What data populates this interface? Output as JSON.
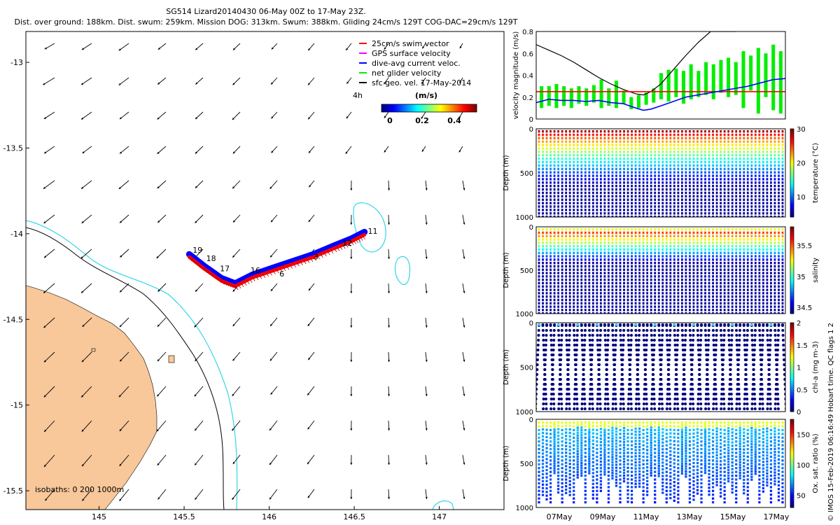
{
  "title": "SG514 Lizard20140430 06-May 00Z to 17-May 23Z.",
  "subtitle": "Dist. over ground: 188km. Dist. swum: 259km. Mission DOG: 313km. Swum: 388km. Gliding 24cm/s 129T COG-DAC=29cm/s 129T",
  "credit": "© IMOS 15-Feb-2019 06:16:49 Hobart time. QC flags 1  2",
  "colors": {
    "land": "#f8c79a",
    "isobath_200": "#000000",
    "isobath_1000": "#33d6e8",
    "track_red": "#ff0000",
    "track_blue": "#0000ff",
    "gps_magenta": "#ff00ff",
    "net_green": "#00ee00"
  },
  "map": {
    "xticks": [
      "145",
      "145.5",
      "146",
      "146.5",
      "147"
    ],
    "yticks": [
      "-13",
      "-13.5",
      "-14",
      "-14.5",
      "-15",
      "-15.5"
    ],
    "isobath_label": "isobaths: 0   200  1000m",
    "legend": [
      {
        "label": "25cm/s swim vector",
        "color": "#ff0000"
      },
      {
        "label": "GPS surface velocity",
        "color": "#ff00ff"
      },
      {
        "label": "dive-avg current veloc.",
        "color": "#0000ff"
      },
      {
        "label": "net glider velocity",
        "color": "#00ee00"
      },
      {
        "label": "sfc geo. vel. 17-May-2014",
        "color": "#000000"
      }
    ],
    "colorbar": {
      "label": "(m/s)",
      "ticks": [
        "0",
        "0.2",
        "0.4"
      ],
      "extra_label": "4h"
    },
    "day_labels": [
      {
        "text": "19",
        "lon": 145.55,
        "lat": -14.11
      },
      {
        "text": "18",
        "lon": 145.63,
        "lat": -14.16
      },
      {
        "text": "17",
        "lon": 145.71,
        "lat": -14.22
      },
      {
        "text": "16",
        "lon": 145.89,
        "lat": -14.23
      },
      {
        "text": "6",
        "lon": 146.06,
        "lat": -14.25
      },
      {
        "text": "3",
        "lon": 146.26,
        "lat": -14.15
      },
      {
        "text": "12",
        "lon": 146.43,
        "lat": -14.07
      },
      {
        "text": "11",
        "lon": 146.58,
        "lat": -14.0
      }
    ]
  },
  "chart_data": [
    {
      "type": "line",
      "ylabel": "velocity magnitude (m/s)",
      "ylim": [
        0,
        0.8
      ],
      "yticks": [
        "0",
        "0.2",
        "0.4",
        "0.6",
        "0.8"
      ],
      "series": [
        {
          "name": "black",
          "color": "#000000",
          "x": [
            0,
            0.05,
            0.1,
            0.15,
            0.2,
            0.25,
            0.3,
            0.35,
            0.4,
            0.43,
            0.46,
            0.5,
            0.55,
            0.6,
            0.65,
            0.7,
            0.75,
            0.8
          ],
          "values": [
            0.68,
            0.63,
            0.58,
            0.52,
            0.45,
            0.38,
            0.32,
            0.27,
            0.23,
            0.22,
            0.25,
            0.32,
            0.45,
            0.58,
            0.7,
            0.8,
            0.8,
            0.8
          ]
        },
        {
          "name": "red",
          "color": "#ff0000",
          "x": [
            0,
            1
          ],
          "values": [
            0.25,
            0.25
          ]
        },
        {
          "name": "blue",
          "color": "#0000ff",
          "x": [
            0,
            0.05,
            0.1,
            0.15,
            0.2,
            0.25,
            0.3,
            0.35,
            0.4,
            0.43,
            0.46,
            0.5,
            0.55,
            0.6,
            0.65,
            0.7,
            0.75,
            0.8,
            0.85,
            0.9,
            0.95,
            1
          ],
          "values": [
            0.15,
            0.18,
            0.17,
            0.17,
            0.16,
            0.17,
            0.15,
            0.14,
            0.1,
            0.08,
            0.09,
            0.12,
            0.16,
            0.2,
            0.22,
            0.24,
            0.26,
            0.28,
            0.3,
            0.33,
            0.36,
            0.37
          ]
        }
      ],
      "green_bars": [
        [
          0.02,
          0.1,
          0.3
        ],
        [
          0.05,
          0.12,
          0.3
        ],
        [
          0.08,
          0.1,
          0.32
        ],
        [
          0.11,
          0.12,
          0.3
        ],
        [
          0.14,
          0.1,
          0.28
        ],
        [
          0.17,
          0.14,
          0.3
        ],
        [
          0.2,
          0.12,
          0.28
        ],
        [
          0.23,
          0.15,
          0.31
        ],
        [
          0.26,
          0.1,
          0.36
        ],
        [
          0.29,
          0.12,
          0.28
        ],
        [
          0.32,
          0.1,
          0.35
        ],
        [
          0.35,
          0.14,
          0.26
        ],
        [
          0.38,
          0.09,
          0.2
        ],
        [
          0.41,
          0.1,
          0.22
        ],
        [
          0.44,
          0.13,
          0.24
        ],
        [
          0.47,
          0.15,
          0.28
        ],
        [
          0.5,
          0.18,
          0.42
        ],
        [
          0.53,
          0.16,
          0.45
        ],
        [
          0.56,
          0.2,
          0.46
        ],
        [
          0.59,
          0.14,
          0.44
        ],
        [
          0.62,
          0.18,
          0.5
        ],
        [
          0.65,
          0.2,
          0.44
        ],
        [
          0.68,
          0.22,
          0.52
        ],
        [
          0.71,
          0.18,
          0.5
        ],
        [
          0.74,
          0.24,
          0.54
        ],
        [
          0.77,
          0.2,
          0.56
        ],
        [
          0.8,
          0.22,
          0.52
        ],
        [
          0.83,
          0.1,
          0.62
        ],
        [
          0.86,
          0.26,
          0.58
        ],
        [
          0.89,
          0.05,
          0.65
        ],
        [
          0.92,
          0.2,
          0.6
        ],
        [
          0.95,
          0.08,
          0.68
        ],
        [
          0.98,
          0.05,
          0.62
        ]
      ]
    },
    {
      "type": "scatter",
      "ylabel": "Depth (m)",
      "colorbar_label": "temperature (°C)",
      "yticks": [
        "0",
        "500",
        "1000"
      ],
      "cticks": [
        "10",
        "20",
        "30"
      ],
      "crange": [
        4,
        30
      ]
    },
    {
      "type": "scatter",
      "ylabel": "Depth (m)",
      "colorbar_label": "salinity",
      "yticks": [
        "0",
        "500",
        "1000"
      ],
      "cticks": [
        "34.5",
        "35",
        "35.5"
      ],
      "crange": [
        34.4,
        35.8
      ]
    },
    {
      "type": "scatter",
      "ylabel": "Depth (m)",
      "colorbar_label": "chl-a (mg m-3)",
      "yticks": [
        "0",
        "500",
        "1000"
      ],
      "cticks": [
        "0",
        "0.5",
        "1",
        "1.5",
        "2"
      ],
      "crange": [
        0,
        2
      ]
    },
    {
      "type": "scatter",
      "ylabel": "Depth (m)",
      "colorbar_label": "Ox. sat. ratio (%)",
      "yticks": [
        "0",
        "500",
        "1000"
      ],
      "cticks": [
        "50",
        "100",
        "150"
      ],
      "crange": [
        30,
        175
      ],
      "xticks": [
        "07May",
        "09May",
        "11May",
        "13May",
        "15May",
        "17May"
      ]
    }
  ]
}
